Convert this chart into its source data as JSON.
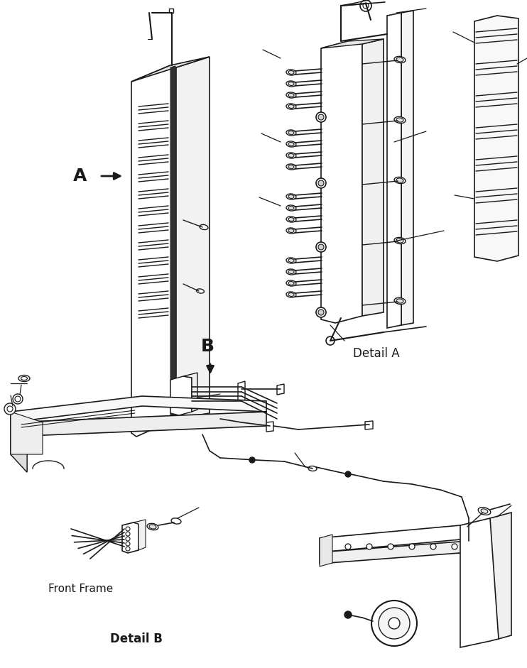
{
  "bg_color": "#ffffff",
  "line_color": "#1a1a1a",
  "fig_width": 7.42,
  "fig_height": 9.41,
  "dpi": 100,
  "label_A": "A",
  "label_B": "B",
  "label_detail_a": "Detail A",
  "label_detail_b": "Detail B",
  "label_front_frame": "Front Frame"
}
